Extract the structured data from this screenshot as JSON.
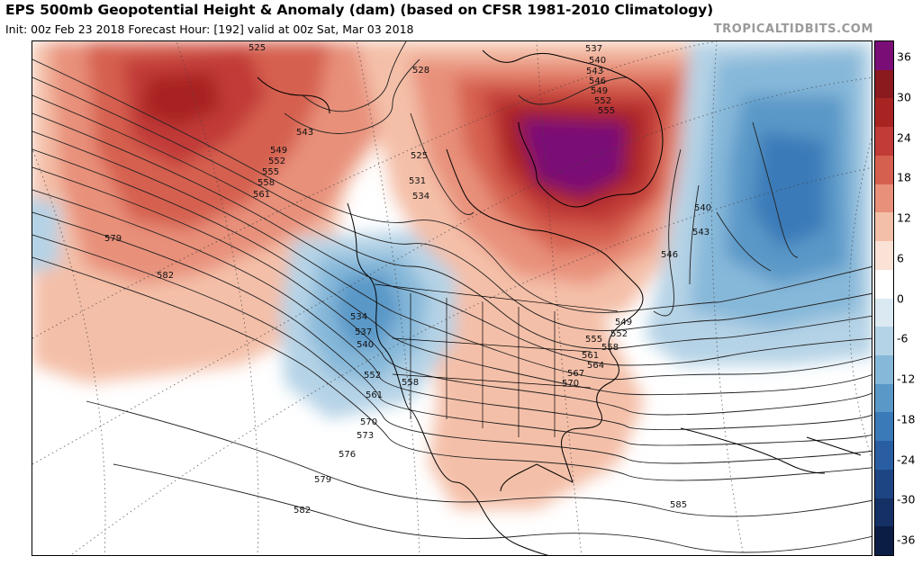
{
  "header": {
    "title": "EPS 500mb Geopotential Height & Anomaly (dam) (based on CFSR 1981-2010 Climatology)",
    "subtitle": "Init: 00z Feb 23 2018   Forecast Hour: [192]   valid at 00z Sat, Mar 03 2018",
    "brand": "TROPICALTIDBITS.COM"
  },
  "map": {
    "region": "North America & North Pacific / Western Atlantic",
    "contour_labels": [
      {
        "text": "525"
      },
      {
        "text": "528"
      },
      {
        "text": "537"
      },
      {
        "text": "540"
      },
      {
        "text": "543"
      },
      {
        "text": "546"
      },
      {
        "text": "549"
      },
      {
        "text": "552"
      },
      {
        "text": "555"
      },
      {
        "text": "543"
      },
      {
        "text": "549"
      },
      {
        "text": "552"
      },
      {
        "text": "555"
      },
      {
        "text": "558"
      },
      {
        "text": "561"
      },
      {
        "text": "525"
      },
      {
        "text": "531"
      },
      {
        "text": "534"
      },
      {
        "text": "579"
      },
      {
        "text": "582"
      },
      {
        "text": "534"
      },
      {
        "text": "537"
      },
      {
        "text": "540"
      },
      {
        "text": "552"
      },
      {
        "text": "558"
      },
      {
        "text": "561"
      },
      {
        "text": "570"
      },
      {
        "text": "573"
      },
      {
        "text": "576"
      },
      {
        "text": "579"
      },
      {
        "text": "582"
      },
      {
        "text": "540"
      },
      {
        "text": "543"
      },
      {
        "text": "546"
      },
      {
        "text": "549"
      },
      {
        "text": "552"
      },
      {
        "text": "555"
      },
      {
        "text": "558"
      },
      {
        "text": "561"
      },
      {
        "text": "564"
      },
      {
        "text": "567"
      },
      {
        "text": "570"
      },
      {
        "text": "585"
      }
    ]
  },
  "colorbar": {
    "labels": [
      "36",
      "30",
      "24",
      "18",
      "12",
      "6",
      "0",
      "-6",
      "-12",
      "-18",
      "-24",
      "-30",
      "-36"
    ],
    "colors": [
      "#7a0e76",
      "#8a1a1d",
      "#a82423",
      "#c13b37",
      "#d6604f",
      "#e8907a",
      "#f4bfa8",
      "#fbe2d6",
      "#ffffff",
      "#dbe9f2",
      "#b5d3e6",
      "#86b8d9",
      "#5a98c8",
      "#3a7ab8",
      "#2a5ea3",
      "#1d4584",
      "#143064",
      "#0b1d45"
    ]
  }
}
